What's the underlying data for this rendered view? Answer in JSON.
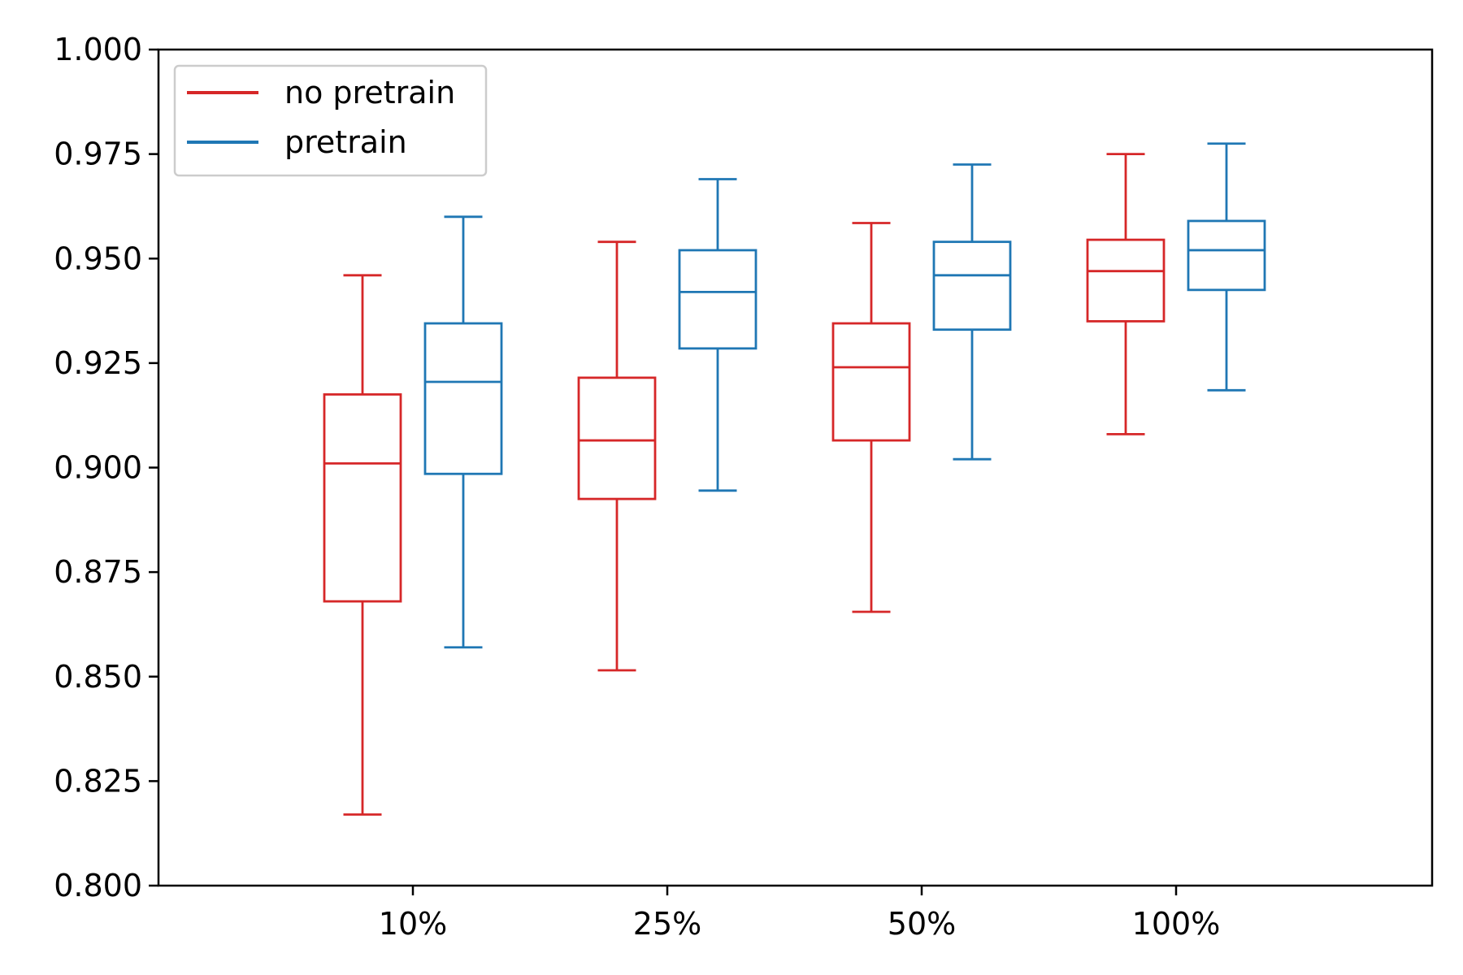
{
  "chart_data": {
    "type": "boxplot",
    "categories": [
      "10%",
      "25%",
      "50%",
      "100%"
    ],
    "ylim": [
      0.8,
      1.0
    ],
    "yticks": [
      "0.800",
      "0.825",
      "0.850",
      "0.875",
      "0.900",
      "0.925",
      "0.950",
      "0.975",
      "1.000"
    ],
    "grid": false,
    "legend_position": "top-left",
    "series": [
      {
        "name": "no pretrain",
        "color": "#d62728",
        "boxes": [
          {
            "whisker_low": 0.817,
            "q1": 0.868,
            "median": 0.901,
            "q3": 0.9175,
            "whisker_high": 0.946
          },
          {
            "whisker_low": 0.8515,
            "q1": 0.8925,
            "median": 0.9065,
            "q3": 0.9215,
            "whisker_high": 0.954
          },
          {
            "whisker_low": 0.8655,
            "q1": 0.9065,
            "median": 0.924,
            "q3": 0.9345,
            "whisker_high": 0.9585
          },
          {
            "whisker_low": 0.908,
            "q1": 0.935,
            "median": 0.947,
            "q3": 0.9545,
            "whisker_high": 0.975
          }
        ]
      },
      {
        "name": "pretrain",
        "color": "#1f77b4",
        "boxes": [
          {
            "whisker_low": 0.857,
            "q1": 0.8985,
            "median": 0.9205,
            "q3": 0.9345,
            "whisker_high": 0.96
          },
          {
            "whisker_low": 0.8945,
            "q1": 0.9285,
            "median": 0.942,
            "q3": 0.952,
            "whisker_high": 0.969
          },
          {
            "whisker_low": 0.902,
            "q1": 0.933,
            "median": 0.946,
            "q3": 0.954,
            "whisker_high": 0.9725
          },
          {
            "whisker_low": 0.9185,
            "q1": 0.9425,
            "median": 0.952,
            "q3": 0.959,
            "whisker_high": 0.9775
          }
        ]
      }
    ]
  }
}
